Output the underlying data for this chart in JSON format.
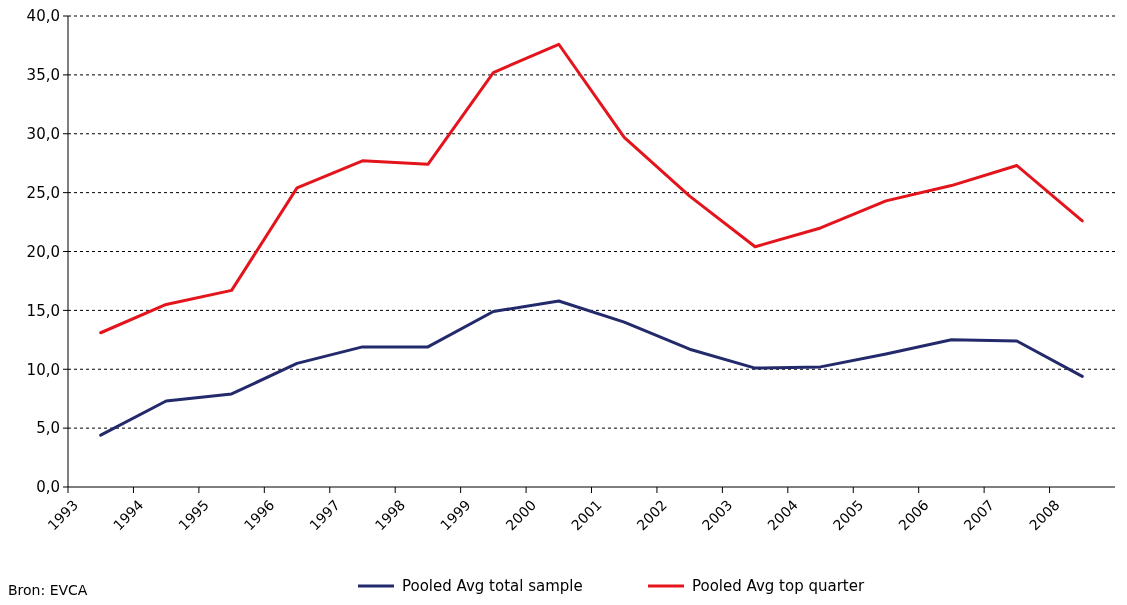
{
  "chart_data": {
    "type": "line",
    "x": [
      1993.5,
      1994.5,
      1995.5,
      1996.5,
      1997.5,
      1998.5,
      1999.5,
      2000.5,
      2001.5,
      2002.5,
      2003.5,
      2004.5,
      2005.5,
      2006.5,
      2007.5,
      2008.5
    ],
    "series": [
      {
        "name": "Pooled Avg total sample",
        "color": "#232a6b",
        "values": [
          4.4,
          7.3,
          7.9,
          10.5,
          11.9,
          11.9,
          14.9,
          15.8,
          14.0,
          11.7,
          10.1,
          10.2,
          11.3,
          12.5,
          12.4,
          9.4
        ]
      },
      {
        "name": "Pooled Avg top quarter",
        "color": "#e3141c",
        "values": [
          13.1,
          15.5,
          16.7,
          25.4,
          27.7,
          27.4,
          35.2,
          37.6,
          29.7,
          24.7,
          20.4,
          22.0,
          24.3,
          25.6,
          27.3,
          22.6
        ]
      }
    ],
    "xlim": [
      1993,
      2009
    ],
    "xticks": [
      1993,
      1994,
      1995,
      1996,
      1997,
      1998,
      1999,
      2000,
      2001,
      2002,
      2003,
      2004,
      2005,
      2006,
      2007,
      2008
    ],
    "ylim": [
      0,
      40
    ],
    "yticks": [
      {
        "value": 0,
        "label": "0,0"
      },
      {
        "value": 5,
        "label": "5,0"
      },
      {
        "value": 10,
        "label": "10,0"
      },
      {
        "value": 15,
        "label": "15,0"
      },
      {
        "value": 20,
        "label": "20,0"
      },
      {
        "value": 25,
        "label": "25,0"
      },
      {
        "value": 30,
        "label": "30,0"
      },
      {
        "value": 35,
        "label": "35,0"
      },
      {
        "value": 40,
        "label": "40,0"
      }
    ],
    "grid": "y",
    "legend": "bottom",
    "line_style": "solid",
    "marker": "none",
    "annotations": [
      "Bron: EVCA"
    ]
  }
}
